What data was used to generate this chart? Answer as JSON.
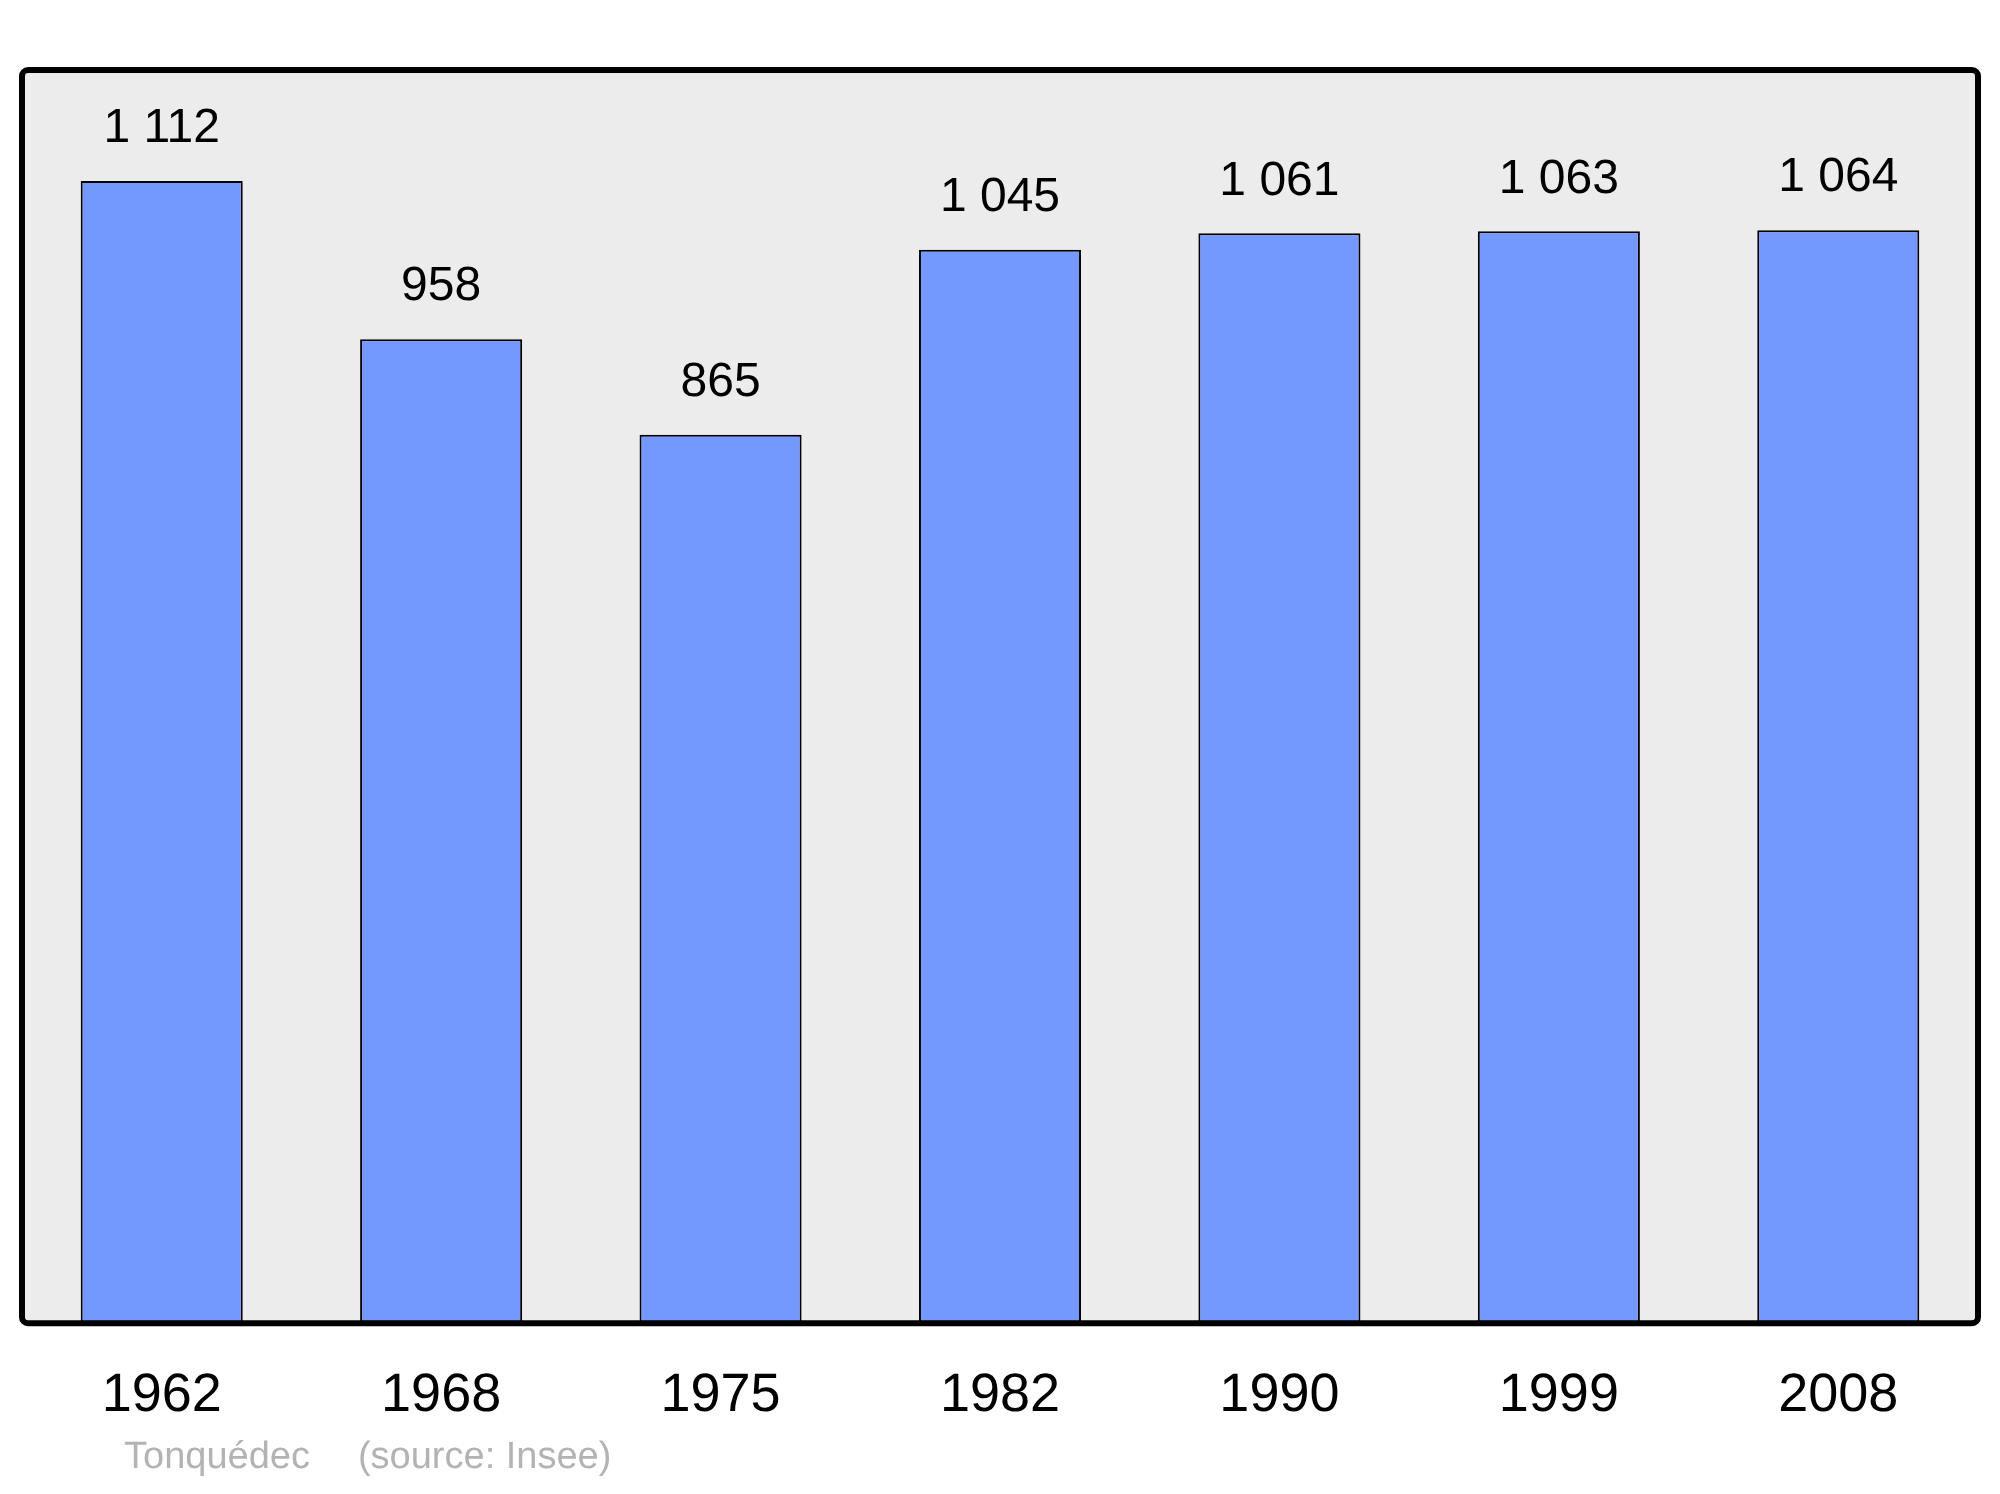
{
  "chart_data": {
    "type": "bar",
    "categories": [
      "1962",
      "1968",
      "1975",
      "1982",
      "1990",
      "1999",
      "2008"
    ],
    "values": [
      1112,
      958,
      865,
      1045,
      1061,
      1063,
      1064
    ],
    "value_labels": [
      "1 112",
      "958",
      "865",
      "1 045",
      "1 061",
      "1 063",
      "1 064"
    ],
    "color": "#7399ff",
    "ylim": [
      0,
      1220
    ],
    "tick_labels": "x",
    "grid": false,
    "legend": false,
    "annotations": [
      "Tonquédec",
      "(source: Insee)"
    ]
  }
}
